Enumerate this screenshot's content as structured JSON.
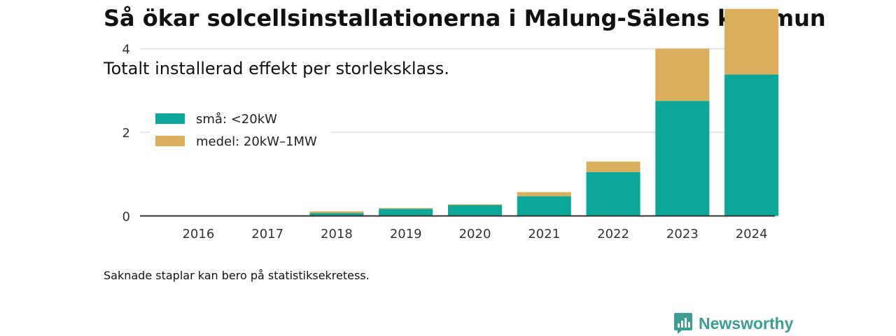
{
  "title": "Så ökar solcellsinstallationerna i Malung-Sälens kommun",
  "subtitle": "Totalt installerad effekt per storleksklass.",
  "footnote": "Saknade staplar kan bero på statistiksekretess.",
  "brand": {
    "name": "Newsworthy",
    "logo_icon": "bar-chart-speech-bubble-icon",
    "color": "#3a9e94"
  },
  "chart_data": {
    "type": "bar",
    "stacked": true,
    "categories": [
      "2016",
      "2017",
      "2018",
      "2019",
      "2020",
      "2021",
      "2022",
      "2023",
      "2024"
    ],
    "series": [
      {
        "name": "små: <20kW",
        "color": "#0aa79a",
        "values": [
          0,
          0,
          0.07,
          0.17,
          0.26,
          0.47,
          1.05,
          2.75,
          3.38
        ]
      },
      {
        "name": "medel: 20kW–1MW",
        "color": "#dbae5b",
        "values": [
          0,
          0,
          0.04,
          0.02,
          0.02,
          0.1,
          0.25,
          1.25,
          1.57
        ]
      }
    ],
    "yticks": [
      0,
      2,
      4
    ],
    "ylim": [
      0,
      5
    ],
    "grid": true,
    "legend": "top-left",
    "xlabel": "",
    "ylabel": ""
  }
}
